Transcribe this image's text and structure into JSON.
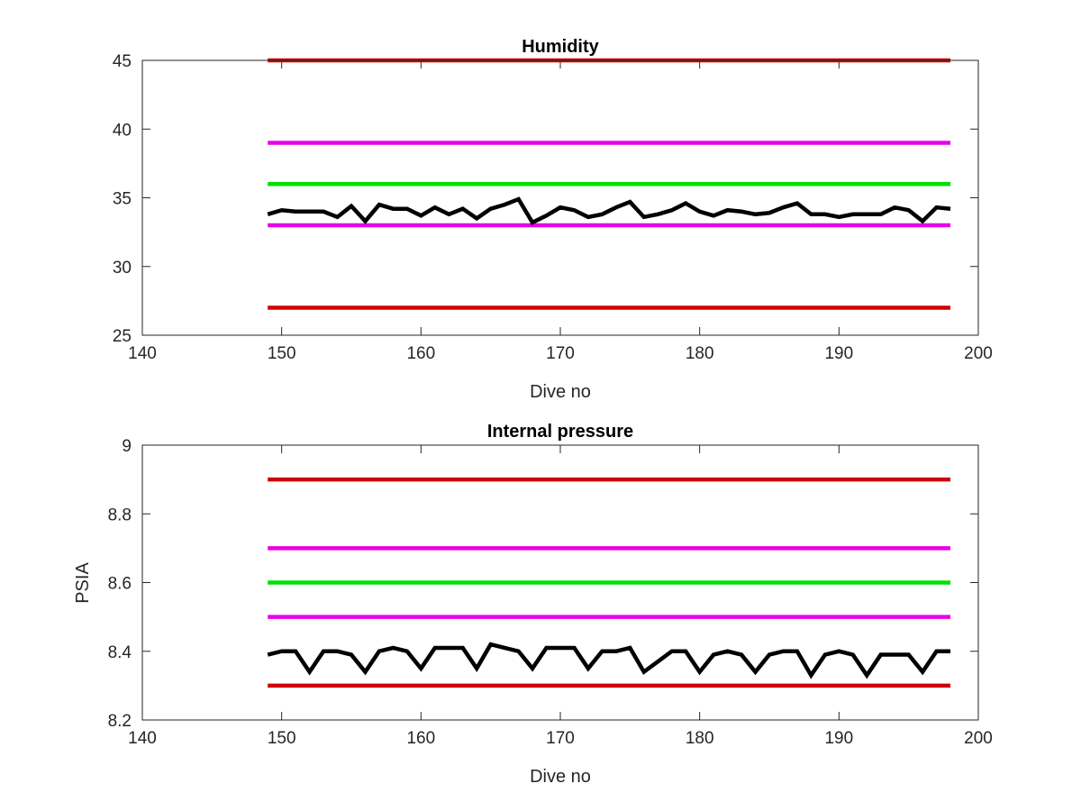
{
  "chart_data": [
    {
      "type": "line",
      "title": "Humidity",
      "xlabel": "Dive no",
      "ylabel": "",
      "xlim": [
        140,
        200
      ],
      "ylim": [
        25,
        45
      ],
      "xticks": [
        140,
        150,
        160,
        170,
        180,
        190,
        200
      ],
      "yticks": [
        25,
        30,
        35,
        40,
        45
      ],
      "x_tick_labels": [
        "140",
        "150",
        "160",
        "170",
        "180",
        "190",
        "200"
      ],
      "y_tick_labels": [
        "25",
        "30",
        "35",
        "40",
        "45"
      ],
      "grid": false,
      "series": [
        {
          "color": "#d00000",
          "x": [
            149,
            198
          ],
          "y": [
            45,
            45
          ]
        },
        {
          "color": "#e800e8",
          "x": [
            149,
            198
          ],
          "y": [
            39,
            39
          ]
        },
        {
          "color": "#00e000",
          "x": [
            149,
            198
          ],
          "y": [
            36,
            36
          ]
        },
        {
          "color": "#e800e8",
          "x": [
            149,
            198
          ],
          "y": [
            33,
            33
          ]
        },
        {
          "color": "#d00000",
          "x": [
            149,
            198
          ],
          "y": [
            27,
            27
          ]
        },
        {
          "color": "#000000",
          "x": [
            149,
            150,
            151,
            152,
            153,
            154,
            155,
            156,
            157,
            158,
            159,
            160,
            161,
            162,
            163,
            164,
            165,
            166,
            167,
            168,
            169,
            170,
            171,
            172,
            173,
            174,
            175,
            176,
            177,
            178,
            179,
            180,
            181,
            182,
            183,
            184,
            185,
            186,
            187,
            188,
            189,
            190,
            191,
            192,
            193,
            194,
            195,
            196,
            197,
            198
          ],
          "y": [
            33.8,
            34.1,
            34.0,
            34.0,
            34.0,
            33.6,
            34.4,
            33.3,
            34.5,
            34.2,
            34.2,
            33.7,
            34.3,
            33.8,
            34.2,
            33.5,
            34.2,
            34.5,
            34.9,
            33.2,
            33.7,
            34.3,
            34.1,
            33.6,
            33.8,
            34.3,
            34.7,
            33.6,
            33.8,
            34.1,
            34.6,
            34.0,
            33.7,
            34.1,
            34.0,
            33.8,
            33.9,
            34.3,
            34.6,
            33.8,
            33.8,
            33.6,
            33.8,
            33.8,
            33.8,
            34.3,
            34.1,
            33.3,
            34.3,
            34.2
          ]
        }
      ]
    },
    {
      "type": "line",
      "title": "Internal pressure",
      "xlabel": "Dive no",
      "ylabel": "PSIA",
      "xlim": [
        140,
        200
      ],
      "ylim": [
        8.2,
        9.0
      ],
      "xticks": [
        140,
        150,
        160,
        170,
        180,
        190,
        200
      ],
      "yticks": [
        8.2,
        8.4,
        8.6,
        8.8,
        9.0
      ],
      "x_tick_labels": [
        "140",
        "150",
        "160",
        "170",
        "180",
        "190",
        "200"
      ],
      "y_tick_labels": [
        "8.2",
        "8.4",
        "8.6",
        "8.8",
        "9"
      ],
      "grid": false,
      "series": [
        {
          "color": "#d00000",
          "x": [
            149,
            198
          ],
          "y": [
            8.9,
            8.9
          ]
        },
        {
          "color": "#e800e8",
          "x": [
            149,
            198
          ],
          "y": [
            8.7,
            8.7
          ]
        },
        {
          "color": "#00e000",
          "x": [
            149,
            198
          ],
          "y": [
            8.6,
            8.6
          ]
        },
        {
          "color": "#e800e8",
          "x": [
            149,
            198
          ],
          "y": [
            8.5,
            8.5
          ]
        },
        {
          "color": "#d00000",
          "x": [
            149,
            198
          ],
          "y": [
            8.3,
            8.3
          ]
        },
        {
          "color": "#000000",
          "x": [
            149,
            150,
            151,
            152,
            153,
            154,
            155,
            156,
            157,
            158,
            159,
            160,
            161,
            162,
            163,
            164,
            165,
            166,
            167,
            168,
            169,
            170,
            171,
            172,
            173,
            174,
            175,
            176,
            177,
            178,
            179,
            180,
            181,
            182,
            183,
            184,
            185,
            186,
            187,
            188,
            189,
            190,
            191,
            192,
            193,
            194,
            195,
            196,
            197,
            198
          ],
          "y": [
            8.39,
            8.4,
            8.4,
            8.34,
            8.4,
            8.4,
            8.39,
            8.34,
            8.4,
            8.41,
            8.4,
            8.35,
            8.41,
            8.41,
            8.41,
            8.35,
            8.42,
            8.41,
            8.4,
            8.35,
            8.41,
            8.41,
            8.41,
            8.35,
            8.4,
            8.4,
            8.41,
            8.34,
            8.37,
            8.4,
            8.4,
            8.34,
            8.39,
            8.4,
            8.39,
            8.34,
            8.39,
            8.4,
            8.4,
            8.33,
            8.39,
            8.4,
            8.39,
            8.33,
            8.39,
            8.39,
            8.39,
            8.34,
            8.4,
            8.4
          ]
        }
      ]
    }
  ]
}
